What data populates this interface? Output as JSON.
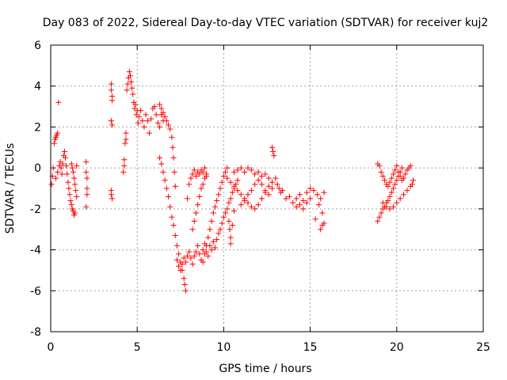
{
  "chart_data": {
    "type": "scatter",
    "title": "Day 083 of 2022, Sidereal Day-to-day VTEC variation (SDTVAR) for receiver kuj2",
    "xlabel": "GPS time / hours",
    "ylabel": "SDTVAR / TECUs",
    "xlim": [
      0,
      25
    ],
    "ylim": [
      -8,
      6
    ],
    "xticks": [
      0,
      5,
      10,
      15,
      20,
      25
    ],
    "yticks": [
      -8,
      -6,
      -4,
      -2,
      0,
      2,
      4,
      6
    ],
    "xtick_labels": [
      "0",
      "5",
      "10",
      "15",
      "20",
      "25"
    ],
    "ytick_labels": [
      "-8",
      "-6",
      "-4",
      "-2",
      "0",
      "2",
      "4",
      "6"
    ],
    "grid": true,
    "marker": "plus",
    "color": "#ff0000",
    "series": [
      {
        "name": "kuj2",
        "points": [
          [
            0.05,
            -0.8
          ],
          [
            0.1,
            -0.4
          ],
          [
            0.15,
            0.0
          ],
          [
            0.2,
            1.2
          ],
          [
            0.25,
            1.4
          ],
          [
            0.3,
            1.5
          ],
          [
            0.35,
            1.6
          ],
          [
            0.4,
            1.7
          ],
          [
            0.45,
            3.2
          ],
          [
            0.3,
            -0.5
          ],
          [
            0.4,
            -0.2
          ],
          [
            0.5,
            0.1
          ],
          [
            0.55,
            0.3
          ],
          [
            0.6,
            0.0
          ],
          [
            0.65,
            -0.3
          ],
          [
            0.7,
            0.2
          ],
          [
            0.75,
            0.6
          ],
          [
            0.8,
            0.8
          ],
          [
            0.85,
            0.5
          ],
          [
            0.9,
            0.1
          ],
          [
            0.95,
            -0.3
          ],
          [
            1.0,
            -0.7
          ],
          [
            1.05,
            -1.0
          ],
          [
            1.1,
            -1.3
          ],
          [
            1.15,
            -1.6
          ],
          [
            1.2,
            -1.8
          ],
          [
            1.25,
            -2.0
          ],
          [
            1.3,
            -2.1
          ],
          [
            1.35,
            -2.3
          ],
          [
            1.4,
            -2.2
          ],
          [
            1.2,
            0.2
          ],
          [
            1.25,
            0.0
          ],
          [
            1.3,
            -0.2
          ],
          [
            1.35,
            -0.5
          ],
          [
            1.4,
            -0.8
          ],
          [
            1.45,
            -1.1
          ],
          [
            1.5,
            -1.4
          ],
          [
            1.5,
            0.1
          ],
          [
            2.05,
            0.3
          ],
          [
            2.05,
            -0.2
          ],
          [
            2.1,
            -0.5
          ],
          [
            2.1,
            -1.0
          ],
          [
            2.1,
            -1.3
          ],
          [
            2.05,
            -1.9
          ],
          [
            3.5,
            4.1
          ],
          [
            3.5,
            3.8
          ],
          [
            3.55,
            3.5
          ],
          [
            3.55,
            3.3
          ],
          [
            3.5,
            2.3
          ],
          [
            3.55,
            2.1
          ],
          [
            3.5,
            -1.3
          ],
          [
            3.55,
            -1.5
          ],
          [
            3.5,
            -1.1
          ],
          [
            4.2,
            -0.2
          ],
          [
            4.25,
            0.1
          ],
          [
            4.25,
            0.4
          ],
          [
            4.3,
            1.2
          ],
          [
            4.35,
            1.4
          ],
          [
            4.35,
            1.7
          ],
          [
            4.4,
            3.8
          ],
          [
            4.45,
            4.1
          ],
          [
            4.5,
            4.4
          ],
          [
            4.55,
            4.7
          ],
          [
            4.6,
            4.5
          ],
          [
            4.65,
            4.2
          ],
          [
            4.7,
            3.9
          ],
          [
            4.75,
            3.6
          ],
          [
            4.8,
            3.2
          ],
          [
            4.85,
            2.9
          ],
          [
            4.9,
            3.1
          ],
          [
            4.95,
            2.6
          ],
          [
            5.0,
            2.8
          ],
          [
            5.05,
            2.2
          ],
          [
            5.1,
            2.5
          ],
          [
            5.2,
            2.8
          ],
          [
            5.3,
            2.3
          ],
          [
            5.4,
            2.0
          ],
          [
            5.5,
            2.6
          ],
          [
            5.6,
            2.3
          ],
          [
            5.7,
            1.7
          ],
          [
            5.8,
            2.4
          ],
          [
            5.9,
            2.9
          ],
          [
            6.0,
            3.0
          ],
          [
            6.1,
            2.6
          ],
          [
            6.2,
            2.2
          ],
          [
            6.3,
            2.0
          ],
          [
            6.4,
            2.6
          ],
          [
            6.5,
            2.3
          ],
          [
            6.3,
            3.1
          ],
          [
            6.4,
            2.9
          ],
          [
            6.5,
            2.7
          ],
          [
            6.6,
            2.5
          ],
          [
            6.7,
            2.3
          ],
          [
            6.8,
            2.1
          ],
          [
            6.9,
            1.9
          ],
          [
            7.0,
            1.5
          ],
          [
            7.05,
            1.0
          ],
          [
            7.1,
            0.5
          ],
          [
            7.15,
            -0.2
          ],
          [
            7.2,
            -0.9
          ],
          [
            6.3,
            0.5
          ],
          [
            6.4,
            0.2
          ],
          [
            6.5,
            -0.2
          ],
          [
            6.6,
            -0.6
          ],
          [
            6.7,
            -1.0
          ],
          [
            6.8,
            -1.4
          ],
          [
            6.9,
            -1.9
          ],
          [
            7.0,
            -2.4
          ],
          [
            7.1,
            -2.8
          ],
          [
            7.2,
            -3.3
          ],
          [
            7.3,
            -3.8
          ],
          [
            7.4,
            -4.2
          ],
          [
            7.5,
            -4.6
          ],
          [
            7.6,
            -5.0
          ],
          [
            7.7,
            -5.4
          ],
          [
            7.75,
            -5.7
          ],
          [
            7.8,
            -6.0
          ],
          [
            7.3,
            -4.5
          ],
          [
            7.4,
            -4.8
          ],
          [
            7.5,
            -5.0
          ],
          [
            7.6,
            -4.7
          ],
          [
            7.7,
            -4.4
          ],
          [
            7.8,
            -4.6
          ],
          [
            7.9,
            -4.3
          ],
          [
            8.0,
            -4.1
          ],
          [
            8.1,
            -4.4
          ],
          [
            8.2,
            -4.7
          ],
          [
            8.3,
            -4.3
          ],
          [
            8.4,
            -4.1
          ],
          [
            8.5,
            -3.8
          ],
          [
            8.6,
            -4.2
          ],
          [
            8.7,
            -4.5
          ],
          [
            8.8,
            -4.0
          ],
          [
            8.9,
            -3.7
          ],
          [
            9.0,
            -4.1
          ],
          [
            9.1,
            -4.3
          ],
          [
            9.2,
            -3.8
          ],
          [
            9.3,
            -4.0
          ],
          [
            9.4,
            -3.6
          ],
          [
            7.9,
            -1.5
          ],
          [
            8.0,
            -0.8
          ],
          [
            8.1,
            -0.5
          ],
          [
            8.2,
            -0.3
          ],
          [
            8.3,
            -0.1
          ],
          [
            8.4,
            -0.4
          ],
          [
            8.5,
            -0.2
          ],
          [
            8.6,
            -0.3
          ],
          [
            8.7,
            -0.1
          ],
          [
            8.8,
            -0.2
          ],
          [
            8.9,
            0.0
          ],
          [
            9.0,
            -0.3
          ],
          [
            8.2,
            -3.0
          ],
          [
            8.3,
            -2.6
          ],
          [
            8.4,
            -2.2
          ],
          [
            8.5,
            -1.8
          ],
          [
            8.6,
            -1.4
          ],
          [
            8.7,
            -1.0
          ],
          [
            8.8,
            -0.8
          ],
          [
            8.9,
            -0.5
          ],
          [
            9.0,
            -0.4
          ],
          [
            8.8,
            -4.6
          ],
          [
            8.9,
            -4.2
          ],
          [
            9.0,
            -3.8
          ],
          [
            9.1,
            -3.4
          ],
          [
            9.2,
            -3.0
          ],
          [
            9.3,
            -2.6
          ],
          [
            9.4,
            -2.2
          ],
          [
            9.5,
            -1.9
          ],
          [
            9.6,
            -1.6
          ],
          [
            9.7,
            -1.3
          ],
          [
            9.8,
            -1.0
          ],
          [
            9.9,
            -0.7
          ],
          [
            10.0,
            -0.4
          ],
          [
            10.1,
            -0.2
          ],
          [
            10.2,
            0.0
          ],
          [
            9.5,
            -3.9
          ],
          [
            9.6,
            -3.5
          ],
          [
            9.7,
            -3.2
          ],
          [
            9.8,
            -3.0
          ],
          [
            9.9,
            -2.7
          ],
          [
            10.0,
            -2.4
          ],
          [
            10.1,
            -2.2
          ],
          [
            10.2,
            -2.0
          ],
          [
            10.3,
            -1.7
          ],
          [
            10.4,
            -1.5
          ],
          [
            10.5,
            -1.2
          ],
          [
            10.6,
            -1.0
          ],
          [
            10.7,
            -0.8
          ],
          [
            10.8,
            -0.6
          ],
          [
            10.3,
            -2.6
          ],
          [
            10.35,
            -3.0
          ],
          [
            10.4,
            -3.4
          ],
          [
            10.4,
            -3.7
          ],
          [
            10.5,
            -2.8
          ],
          [
            10.6,
            -2.1
          ],
          [
            10.2,
            -0.5
          ],
          [
            10.4,
            -0.7
          ],
          [
            10.6,
            -0.9
          ],
          [
            10.8,
            -1.1
          ],
          [
            11.0,
            -1.3
          ],
          [
            11.2,
            -1.5
          ],
          [
            11.4,
            -1.7
          ],
          [
            11.6,
            -1.9
          ],
          [
            11.8,
            -2.0
          ],
          [
            12.0,
            -1.8
          ],
          [
            12.2,
            -1.5
          ],
          [
            12.4,
            -1.2
          ],
          [
            12.6,
            -0.9
          ],
          [
            12.8,
            -0.7
          ],
          [
            13.0,
            -0.5
          ],
          [
            10.6,
            -0.2
          ],
          [
            10.8,
            -0.1
          ],
          [
            11.0,
            0.0
          ],
          [
            11.2,
            -0.2
          ],
          [
            11.4,
            0.0
          ],
          [
            11.6,
            -0.1
          ],
          [
            11.8,
            -0.3
          ],
          [
            12.0,
            -0.2
          ],
          [
            12.2,
            -0.4
          ],
          [
            12.4,
            -0.3
          ],
          [
            12.6,
            -0.5
          ],
          [
            11.0,
            -1.8
          ],
          [
            11.2,
            -1.6
          ],
          [
            11.4,
            -1.3
          ],
          [
            11.6,
            -1.1
          ],
          [
            11.8,
            -0.8
          ],
          [
            12.0,
            -0.6
          ],
          [
            12.2,
            -0.8
          ],
          [
            12.4,
            -1.1
          ],
          [
            12.6,
            -1.3
          ],
          [
            12.8,
            -1.0
          ],
          [
            12.8,
            1.0
          ],
          [
            12.85,
            0.8
          ],
          [
            12.9,
            0.6
          ],
          [
            13.1,
            -0.8
          ],
          [
            13.2,
            -1.0
          ],
          [
            13.3,
            -1.2
          ],
          [
            13.4,
            -1.1
          ],
          [
            13.6,
            -1.5
          ],
          [
            13.8,
            -1.4
          ],
          [
            14.0,
            -1.7
          ],
          [
            14.2,
            -1.5
          ],
          [
            14.4,
            -1.3
          ],
          [
            14.6,
            -1.6
          ],
          [
            14.8,
            -1.2
          ],
          [
            15.0,
            -1.0
          ],
          [
            15.2,
            -1.1
          ],
          [
            15.4,
            -1.3
          ],
          [
            15.6,
            -1.5
          ],
          [
            15.8,
            -1.2
          ],
          [
            14.2,
            -1.9
          ],
          [
            14.4,
            -1.8
          ],
          [
            14.6,
            -2.0
          ],
          [
            14.8,
            -1.7
          ],
          [
            15.0,
            -1.5
          ],
          [
            15.3,
            -2.5
          ],
          [
            15.5,
            -1.8
          ],
          [
            15.7,
            -2.2
          ],
          [
            15.6,
            -3.0
          ],
          [
            15.7,
            -2.8
          ],
          [
            15.8,
            -2.7
          ],
          [
            18.9,
            0.2
          ],
          [
            19.0,
            0.1
          ],
          [
            19.1,
            -0.2
          ],
          [
            19.2,
            -0.4
          ],
          [
            19.3,
            -0.6
          ],
          [
            19.4,
            -0.8
          ],
          [
            19.5,
            -0.9
          ],
          [
            19.6,
            -0.7
          ],
          [
            19.7,
            -0.5
          ],
          [
            19.8,
            -0.3
          ],
          [
            19.9,
            -0.1
          ],
          [
            20.0,
            0.1
          ],
          [
            20.1,
            -0.2
          ],
          [
            20.2,
            -0.4
          ],
          [
            20.3,
            -0.6
          ],
          [
            20.4,
            -0.5
          ],
          [
            20.5,
            -0.3
          ],
          [
            20.6,
            -0.1
          ],
          [
            20.7,
            0.0
          ],
          [
            20.8,
            0.1
          ],
          [
            18.9,
            -2.6
          ],
          [
            19.0,
            -2.4
          ],
          [
            19.1,
            -2.2
          ],
          [
            19.2,
            -2.0
          ],
          [
            19.3,
            -1.9
          ],
          [
            19.4,
            -1.7
          ],
          [
            19.5,
            -1.6
          ],
          [
            19.6,
            -1.4
          ],
          [
            19.7,
            -1.2
          ],
          [
            19.8,
            -1.0
          ],
          [
            19.9,
            -0.8
          ],
          [
            20.0,
            -0.6
          ],
          [
            20.1,
            -0.4
          ],
          [
            20.2,
            -0.2
          ],
          [
            20.3,
            0.0
          ],
          [
            19.2,
            -1.7
          ],
          [
            19.4,
            -1.9
          ],
          [
            19.6,
            -2.0
          ],
          [
            19.8,
            -1.9
          ],
          [
            20.0,
            -1.7
          ],
          [
            20.2,
            -1.5
          ],
          [
            20.4,
            -1.3
          ],
          [
            20.6,
            -1.1
          ],
          [
            20.8,
            -0.9
          ],
          [
            20.9,
            -0.8
          ],
          [
            20.95,
            -0.6
          ]
        ]
      }
    ]
  }
}
